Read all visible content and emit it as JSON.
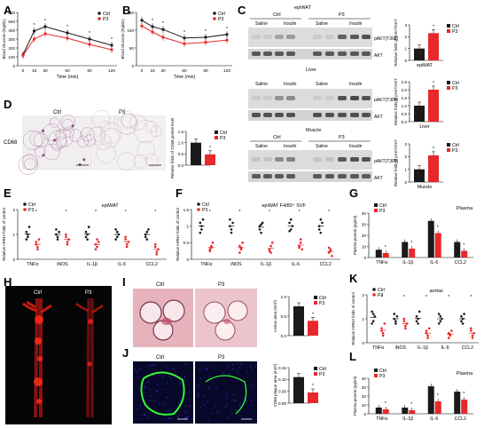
{
  "colors": {
    "ctrl": "#1a1a1a",
    "p3": "#e8282b",
    "blot": "#3a3a3a",
    "fluor_red": "#ff2a1a",
    "fluor_green": "#33ff33",
    "fluor_blue": "#2233cc"
  },
  "panels": {
    "A": {
      "letter": "A"
    },
    "B": {
      "letter": "B"
    },
    "C": {
      "letter": "C"
    },
    "D": {
      "letter": "D"
    },
    "E": {
      "letter": "E"
    },
    "F": {
      "letter": "F"
    },
    "G": {
      "letter": "G"
    },
    "H": {
      "letter": "H"
    },
    "I": {
      "letter": "I"
    },
    "J": {
      "letter": "J"
    },
    "K": {
      "letter": "K"
    },
    "L": {
      "letter": "L"
    }
  },
  "common": {
    "ctrl": "Ctrl",
    "p3": "P3",
    "star": "*"
  },
  "chart_data": [
    {
      "id": "A",
      "type": "line",
      "xlabel": "Time (min)",
      "ylabel": "Blood Glucose (mg/dL)",
      "x": [
        0,
        15,
        30,
        60,
        90,
        120
      ],
      "ylim": [
        0,
        600
      ],
      "yticks": [
        0,
        100,
        200,
        300,
        400,
        500,
        600
      ],
      "series": [
        {
          "name": "Ctrl",
          "values": [
            125,
            390,
            440,
            370,
            300,
            230
          ]
        },
        {
          "name": "P3",
          "values": [
            115,
            300,
            360,
            310,
            240,
            180
          ]
        }
      ]
    },
    {
      "id": "B",
      "type": "line",
      "xlabel": "Time (min)",
      "ylabel": "Blood Glucose (mg/dL)",
      "x": [
        0,
        15,
        30,
        60,
        90,
        120
      ],
      "ylim": [
        0,
        150
      ],
      "yticks": [
        0,
        50,
        100,
        150
      ],
      "series": [
        {
          "name": "Ctrl",
          "values": [
            128,
            110,
            102,
            78,
            80,
            88
          ]
        },
        {
          "name": "P3",
          "values": [
            112,
            95,
            80,
            62,
            66,
            72
          ]
        }
      ]
    },
    {
      "id": "C1",
      "type": "bar",
      "ylabel": "Relative folds of pAKT/AKT",
      "xlabel": "epiWAT",
      "ylim": [
        0,
        3
      ],
      "yticks": [
        0,
        1,
        2,
        3
      ],
      "series": [
        {
          "name": "Ctrl",
          "values": [
            1.0
          ]
        },
        {
          "name": "P3",
          "values": [
            2.3
          ]
        }
      ]
    },
    {
      "id": "C2",
      "type": "bar",
      "ylabel": "Relative folds of pAKT/AKT",
      "xlabel": "Liver",
      "ylim": [
        0,
        2.5
      ],
      "yticks": [
        0.0,
        0.5,
        1.0,
        1.5,
        2.0,
        2.5
      ],
      "series": [
        {
          "name": "Ctrl",
          "values": [
            1.0
          ]
        },
        {
          "name": "P3",
          "values": [
            2.0
          ]
        }
      ]
    },
    {
      "id": "C3",
      "type": "bar",
      "ylabel": "Relative folds of pAKT/AKT",
      "xlabel": "Muscle",
      "ylim": [
        0,
        3
      ],
      "yticks": [
        0,
        1,
        2,
        3
      ],
      "series": [
        {
          "name": "Ctrl",
          "values": [
            1.0
          ]
        },
        {
          "name": "P3",
          "values": [
            2.1
          ]
        }
      ]
    },
    {
      "id": "D",
      "type": "bar",
      "ylabel": "Relative folds of CD68 protein level",
      "ylim": [
        0,
        1.5
      ],
      "yticks": [
        0.0,
        0.5,
        1.0,
        1.5
      ],
      "series": [
        {
          "name": "Ctrl",
          "values": [
            1.0
          ]
        },
        {
          "name": "P3",
          "values": [
            0.48
          ]
        }
      ]
    },
    {
      "id": "E",
      "type": "scatter",
      "title": "epiWAT",
      "ylabel": "Relative mRNA folds of control",
      "categories": [
        "TNFα",
        "iNOS",
        "IL-1β",
        "IL-6",
        "CCL2"
      ],
      "ylim": [
        0,
        2
      ],
      "yticks": [
        0,
        1,
        2
      ]
    },
    {
      "id": "F",
      "type": "scatter",
      "title": "epiWAT F4/80⁺ SVF",
      "ylabel": "Relative mRNA folds of control",
      "categories": [
        "TNFα",
        "iNOS",
        "IL-1β",
        "IL-6",
        "CCL2"
      ],
      "ylim": [
        0,
        1.5
      ],
      "yticks": [
        0.0,
        0.5,
        1.0,
        1.5
      ]
    },
    {
      "id": "G",
      "type": "bar",
      "title": "Plasma",
      "ylabel": "Plasma protein (pg/ml)",
      "categories": [
        "TNFα",
        "IL-1β",
        "IL-6",
        "CCL2"
      ],
      "ylim": [
        0,
        40
      ],
      "yticks": [
        0,
        10,
        20,
        30,
        40
      ],
      "series": [
        {
          "name": "Ctrl",
          "values": [
            7,
            14,
            33,
            14
          ]
        },
        {
          "name": "P3",
          "values": [
            4,
            8,
            22,
            6
          ]
        }
      ]
    },
    {
      "id": "I",
      "type": "bar",
      "ylabel": "Lesion area (mm²)",
      "ylim": [
        0,
        1.0
      ],
      "yticks": [
        0.0,
        0.5,
        1.0
      ],
      "series": [
        {
          "name": "Ctrl",
          "values": [
            0.75
          ]
        },
        {
          "name": "P3",
          "values": [
            0.38
          ]
        }
      ]
    },
    {
      "id": "J",
      "type": "bar",
      "ylabel": "CD68 plaque area (mm²)",
      "ylim": [
        0,
        0.15
      ],
      "yticks": [
        0.0,
        0.05,
        0.1,
        0.15
      ],
      "series": [
        {
          "name": "Ctrl",
          "values": [
            0.11
          ]
        },
        {
          "name": "P3",
          "values": [
            0.045
          ]
        }
      ]
    },
    {
      "id": "K",
      "type": "scatter",
      "title": "aortas",
      "ylabel": "Relative mRNA folds of control",
      "categories": [
        "TNFα",
        "iNOS",
        "IL-1β",
        "IL-6",
        "CCL2"
      ],
      "ylim": [
        0,
        2
      ],
      "yticks": [
        0,
        1,
        2
      ]
    },
    {
      "id": "L",
      "type": "bar",
      "title": "Plasma",
      "ylabel": "Plasma protein (pg/ml)",
      "categories": [
        "TNFα",
        "IL-1β",
        "IL-6",
        "CCL2"
      ],
      "ylim": [
        0,
        40
      ],
      "yticks": [
        0,
        10,
        20,
        30,
        40
      ],
      "series": [
        {
          "name": "Ctrl",
          "values": [
            7,
            7,
            31,
            25
          ]
        },
        {
          "name": "P3",
          "values": [
            5,
            4,
            14,
            16
          ]
        }
      ]
    }
  ],
  "blots": {
    "epi": {
      "title": "epiWAT",
      "ctrl": "Ctrl",
      "p3": "P3",
      "saline": "Saline",
      "insulin": "Insulin",
      "band1": "pAKT(T308)",
      "band2": "AKT"
    },
    "liver": {
      "title": "Liver",
      "saline": "Saline",
      "insulin": "Insulin",
      "band1": "pAKT(T308)",
      "band2": "AKT"
    },
    "muscle": {
      "title": "Muscle",
      "ctrl": "Ctrl",
      "p3": "P3",
      "saline": "Saline",
      "insulin": "Insulin",
      "band1": "pAKT(T308)",
      "band2": "AKT"
    }
  },
  "micro": {
    "D_label": "CD68",
    "D_ctrl": "Ctrl",
    "D_p3": "P3",
    "H_ctrl": "Ctrl",
    "H_p3": "P3",
    "I_ctrl": "Ctrl",
    "I_p3": "P3",
    "J_ctrl": "Ctrl",
    "J_p3": "P3"
  }
}
